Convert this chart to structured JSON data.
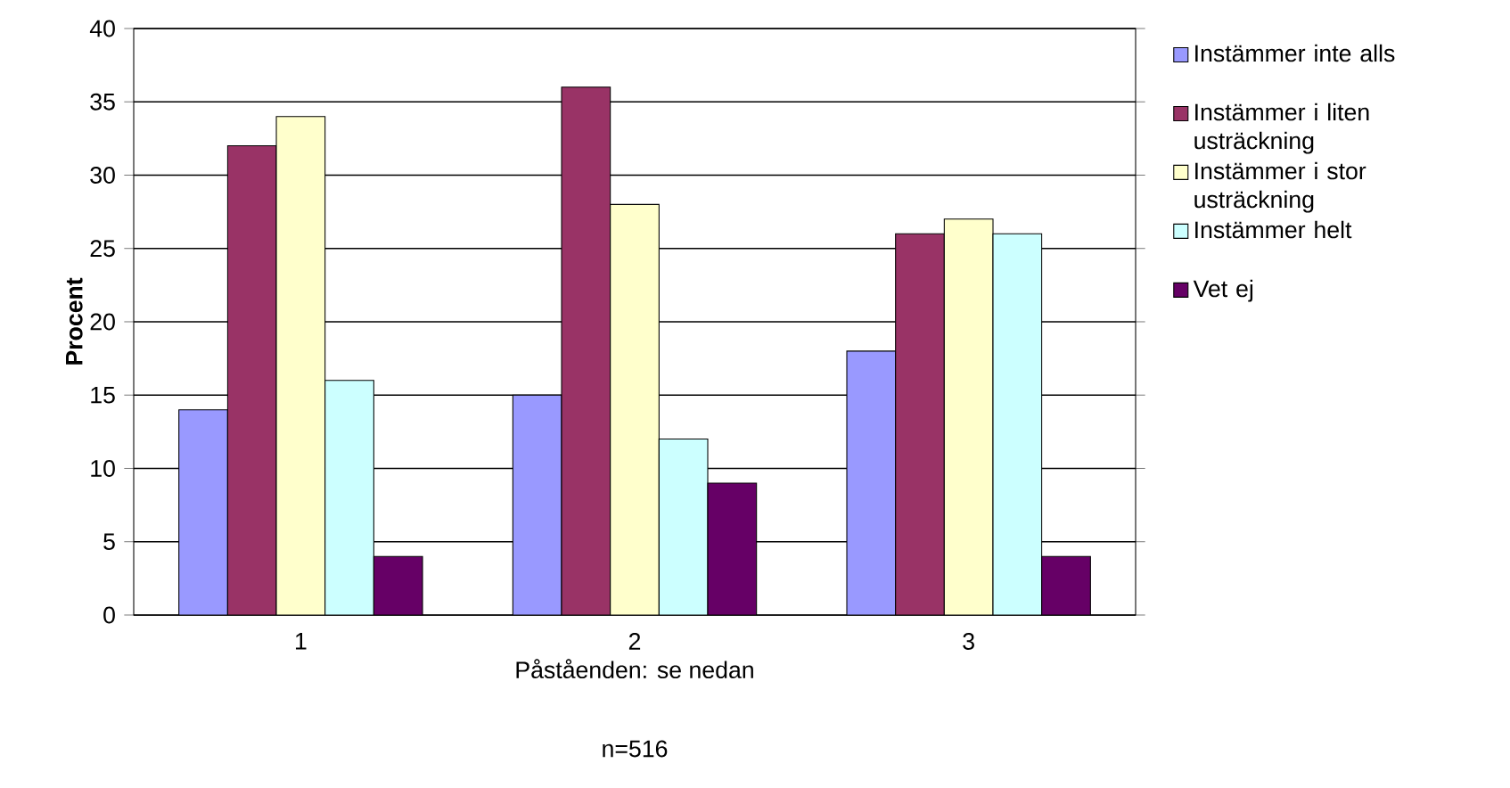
{
  "chart_data": {
    "type": "bar",
    "xlabel": "Påståenden: se nedan",
    "ylabel": "Procent",
    "annotations": [
      "n=516"
    ],
    "categories": [
      "1",
      "2",
      "3"
    ],
    "series": [
      {
        "name": "Instämmer inte alls",
        "color": "#9999ff",
        "values": [
          14,
          15,
          18
        ]
      },
      {
        "name": "Instämmer i liten usträckning",
        "color": "#993366",
        "values": [
          32,
          36,
          26
        ]
      },
      {
        "name": "Instämmer i stor usträckning",
        "color": "#ffffcc",
        "values": [
          34,
          28,
          27
        ]
      },
      {
        "name": "Instämmer helt",
        "color": "#ccffff",
        "values": [
          16,
          12,
          26
        ]
      },
      {
        "name": "Vet ej",
        "color": "#660066",
        "values": [
          4,
          9,
          4
        ]
      }
    ],
    "ylim": [
      0,
      40
    ],
    "yticks": [
      0,
      5,
      10,
      15,
      20,
      25,
      30,
      35,
      40
    ],
    "grid": "y",
    "legend": "right"
  }
}
